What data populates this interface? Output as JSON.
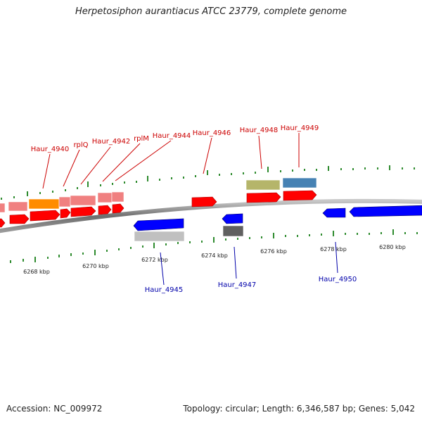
{
  "title": "Herpetosiphon aurantiacus ATCC 23779, complete genome",
  "footer": {
    "accession": "Accession: NC_009972",
    "summary": "Topology: circular; Length: 6,346,587 bp; Genes: 5,042"
  },
  "colors": {
    "backbone": "#808080",
    "forward_label": "#cc0000",
    "reverse_label": "#0000aa",
    "tick": "#2e8b2e",
    "cds_forward": "#ff0000",
    "cds_reverse": "#0000ff"
  },
  "scale": {
    "unit": "kbp",
    "labels": [
      "6268 kbp",
      "6270 kbp",
      "6272 kbp",
      "6274 kbp",
      "6276 kbp",
      "6278 kbp",
      "6280 kbp"
    ]
  },
  "genes_forward": [
    {
      "label": "Haur_4940",
      "color": "#ff8c00"
    },
    {
      "label": "rplQ",
      "color": "#f08080"
    },
    {
      "label": "Haur_4942",
      "color": "#f08080"
    },
    {
      "label": "rplM",
      "color": "#f08080"
    },
    {
      "label": "Haur_4944",
      "color": "#f08080"
    },
    {
      "label": "Haur_4946",
      "color": "#ff0000"
    },
    {
      "label": "Haur_4948",
      "color": "#b5b56a"
    },
    {
      "label": "Haur_4949",
      "color": "#4682b4"
    }
  ],
  "genes_reverse": [
    {
      "label": "Haur_4945",
      "color": "#c0c0c0"
    },
    {
      "label": "Haur_4947",
      "color": "#606060"
    },
    {
      "label": "Haur_4950",
      "color": "#0000ff"
    }
  ]
}
